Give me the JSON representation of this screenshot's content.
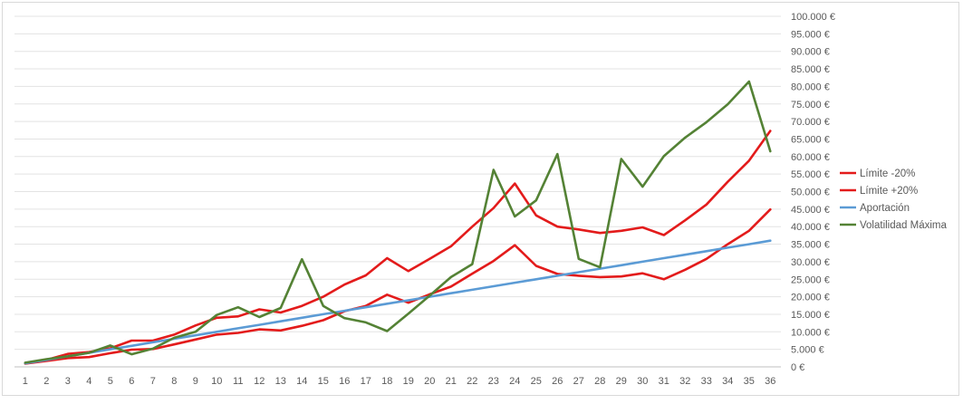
{
  "chart_data": {
    "type": "line",
    "categories": [
      "1",
      "2",
      "3",
      "4",
      "5",
      "6",
      "7",
      "8",
      "9",
      "10",
      "11",
      "12",
      "13",
      "14",
      "15",
      "16",
      "17",
      "18",
      "19",
      "20",
      "21",
      "22",
      "23",
      "24",
      "25",
      "26",
      "27",
      "28",
      "29",
      "30",
      "31",
      "32",
      "33",
      "34",
      "35",
      "36"
    ],
    "y_axis": {
      "position": "right",
      "ylim": [
        0,
        100000
      ],
      "tick_labels": [
        "0 €",
        "5.000 €",
        "10.000 €",
        "15.000 €",
        "20.000 €",
        "25.000 €",
        "30.000 €",
        "35.000 €",
        "40.000 €",
        "45.000 €",
        "50.000 €",
        "55.000 €",
        "60.000 €",
        "65.000 €",
        "70.000 €",
        "75.000 €",
        "80.000 €",
        "85.000 €",
        "90.000 €",
        "95.000 €",
        "100.000 €"
      ]
    },
    "grid": true,
    "legend_position": "right",
    "series": [
      {
        "name": "Límite -20%",
        "color": "#e31b1b",
        "values": [
          1000,
          2000,
          3700,
          4200,
          5300,
          7500,
          7500,
          9200,
          11800,
          14000,
          14400,
          16400,
          15500,
          17400,
          20000,
          23500,
          26100,
          31000,
          27300,
          30800,
          34400,
          40000,
          45300,
          52300,
          43200,
          40000,
          39200,
          38200,
          38800,
          39800,
          37600,
          41800,
          46300,
          52800,
          58800,
          67300
        ]
      },
      {
        "name": "Límite +20%",
        "color": "#e31b1b",
        "values": [
          900,
          1700,
          2500,
          2800,
          3900,
          4900,
          5100,
          6400,
          7800,
          9200,
          9700,
          10700,
          10400,
          11700,
          13300,
          15900,
          17400,
          20600,
          18300,
          20700,
          22900,
          26600,
          30200,
          34700,
          28800,
          26500,
          26000,
          25600,
          25800,
          26700,
          25000,
          27700,
          30800,
          35000,
          38800,
          44900
        ]
      },
      {
        "name": "Aportación",
        "color": "#5b9bd5",
        "values": [
          1000,
          2000,
          3000,
          4000,
          5000,
          6000,
          7000,
          8000,
          9000,
          10000,
          11000,
          12000,
          13000,
          14000,
          15000,
          16000,
          17000,
          18000,
          19000,
          20000,
          21000,
          22000,
          23000,
          24000,
          25000,
          26000,
          27000,
          28000,
          29000,
          30000,
          31000,
          32000,
          33000,
          34000,
          35000,
          36000
        ]
      },
      {
        "name": "Volatilidad Máxima",
        "color": "#548235",
        "values": [
          1200,
          2200,
          3000,
          4000,
          6100,
          3600,
          5200,
          8300,
          10000,
          14800,
          17000,
          14200,
          16800,
          30700,
          17400,
          13900,
          12700,
          10200,
          15200,
          20300,
          25600,
          29300,
          56200,
          42900,
          47500,
          60700,
          30800,
          28400,
          59300,
          51400,
          60100,
          65400,
          69800,
          74900,
          81400,
          61500
        ]
      }
    ]
  }
}
